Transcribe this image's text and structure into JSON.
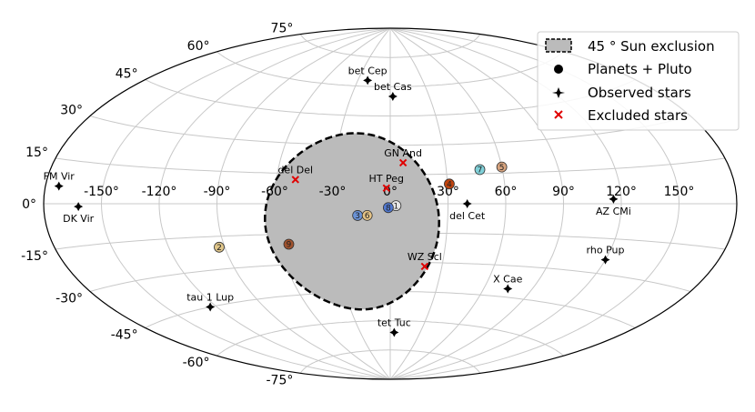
{
  "chart_data": {
    "type": "scatter",
    "projection": "aitoff",
    "grid": true,
    "legend_position": "top-right",
    "longitude_ticks": [
      "150°",
      "120°",
      "90°",
      "60°",
      "30°",
      "0°",
      "-30°",
      "-60°",
      "-90°",
      "-120°",
      "-150°"
    ],
    "latitude_ticks": [
      "75°",
      "60°",
      "45°",
      "30°",
      "15°",
      "0°",
      "-15°",
      "-30°",
      "-45°",
      "-60°",
      "-75°"
    ],
    "legend": [
      {
        "key": "exclusion",
        "label": "45$^\\circ$ Sun exclusion",
        "display": "45 ° Sun exclusion"
      },
      {
        "key": "planets",
        "label": "Planets + Pluto"
      },
      {
        "key": "observed",
        "label": "Observed stars"
      },
      {
        "key": "excluded",
        "label": "Excluded stars"
      }
    ],
    "exclusion_zone": {
      "center_lon": -20,
      "center_lat": -9,
      "radius_deg": 45,
      "fill": "#bbbbbb",
      "edge": "#000000"
    },
    "observed_stars": [
      {
        "name": "bet Cep",
        "lon": -21,
        "lat": 63
      },
      {
        "name": "bet Cas",
        "lon": 2,
        "lat": 55
      },
      {
        "name": "AZ CMi",
        "lon": 116,
        "lat": 2
      },
      {
        "name": "del Cet",
        "lon": 40,
        "lat": 0
      },
      {
        "name": "FM Vir",
        "lon": -173,
        "lat": 6
      },
      {
        "name": "DK Vir",
        "lon": -162,
        "lat": -1
      },
      {
        "name": "rho Pup",
        "lon": 120,
        "lat": -24
      },
      {
        "name": "X Cae",
        "lon": 75,
        "lat": -41
      },
      {
        "name": "tau 1 Lup",
        "lon": -124,
        "lat": -45
      },
      {
        "name": "tet Tuc",
        "lon": 4,
        "lat": -66
      }
    ],
    "excluded_stars": [
      {
        "name": "GN And",
        "lon": 7,
        "lat": 21
      },
      {
        "name": "HT Peg",
        "lon": -2,
        "lat": 8
      },
      {
        "name": "del Del",
        "lon": -50,
        "lat": 12
      },
      {
        "name": "WZ Scl",
        "lon": 20,
        "lat": -32
      }
    ],
    "planets": [
      {
        "number": "1",
        "lon": 3,
        "lat": -1,
        "color": "#e6e6e6"
      },
      {
        "number": "2",
        "lon": -93,
        "lat": -20,
        "color": "#e0c68a"
      },
      {
        "number": "3",
        "lon": -17,
        "lat": -6,
        "color": "#6b93d6"
      },
      {
        "number": "4",
        "lon": 31,
        "lat": 10,
        "color": "#c1440e"
      },
      {
        "number": "5",
        "lon": 60,
        "lat": 18,
        "color": "#d8a47f"
      },
      {
        "number": "6",
        "lon": -12,
        "lat": -6,
        "color": "#e3c285"
      },
      {
        "number": "7",
        "lon": 48,
        "lat": 17,
        "color": "#80d0d8"
      },
      {
        "number": "8",
        "lon": -1,
        "lat": -2,
        "color": "#5078d0"
      },
      {
        "number": "9",
        "lon": -55,
        "lat": -20,
        "color": "#a0522d"
      }
    ]
  }
}
